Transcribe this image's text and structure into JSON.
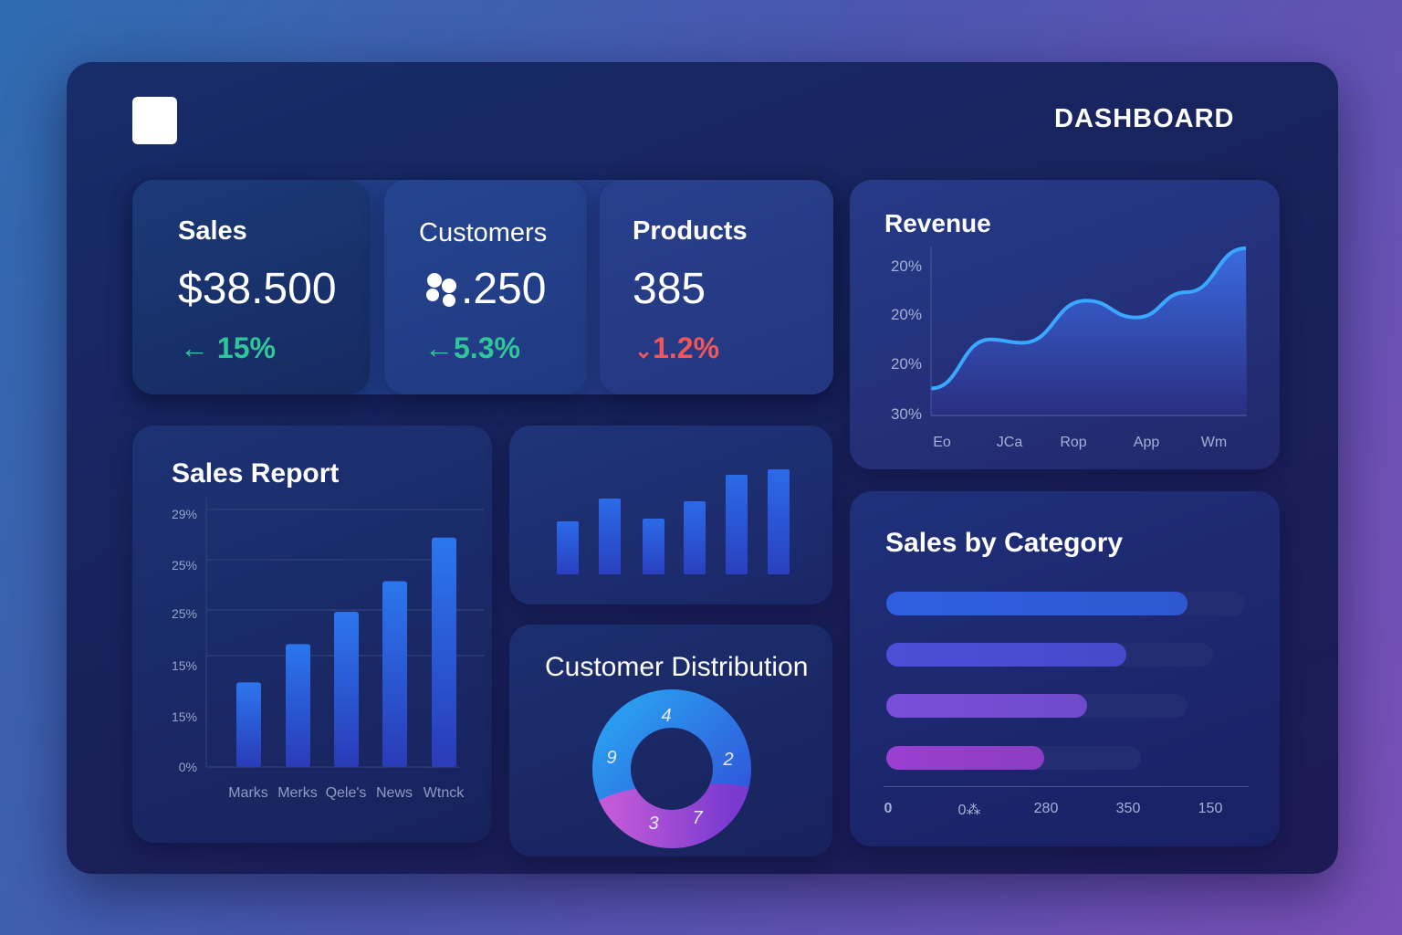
{
  "header": {
    "title": "DASHBOARD"
  },
  "stats": [
    {
      "label": "Sales",
      "value": "$38.500",
      "delta": "15%",
      "direction": "up",
      "color": "#2fc79a",
      "icon": "arrow-left-icon"
    },
    {
      "label": "Customers",
      "value": ".250",
      "delta": "5.3%",
      "direction": "up",
      "color": "#2fc79a",
      "icon": "arrow-left-icon"
    },
    {
      "label": "Products",
      "value": "385",
      "delta": "1.2%",
      "direction": "down",
      "color": "#f0565a",
      "icon": "chevron-down-icon"
    }
  ],
  "revenue": {
    "title": "Revenue",
    "y_ticks": [
      "20%",
      "20%",
      "20%",
      "30%"
    ],
    "x_ticks": [
      "Eo",
      "JCa",
      "Rop",
      "App",
      "Wm"
    ],
    "values": [
      16,
      45,
      43,
      68,
      58,
      73,
      99
    ],
    "line_color": "#3aa8ff"
  },
  "sales_report": {
    "title": "Sales Report",
    "y_ticks": [
      "29%",
      "25%",
      "25%",
      "15%",
      "15%",
      "0%"
    ],
    "categories": [
      "Marks",
      "Merks",
      "Qele's",
      "News",
      "Wtnck"
    ],
    "values": [
      9.7,
      14.1,
      17.8,
      21.3,
      26.3
    ]
  },
  "mini_bars": {
    "values": [
      58,
      83,
      61,
      80,
      109,
      115
    ]
  },
  "customer_distribution": {
    "title": "Customer Distribution",
    "labels": [
      "4",
      "9",
      "2",
      "3",
      "7"
    ]
  },
  "sales_by_category": {
    "title": "Sales by Category",
    "bars": [
      {
        "fill": 0.84,
        "track": 1.0,
        "color": "#2f5fe0"
      },
      {
        "fill": 0.67,
        "track": 0.91,
        "color": "#4b4fd8"
      },
      {
        "fill": 0.56,
        "track": 0.84,
        "color": "#7a4fd8"
      },
      {
        "fill": 0.44,
        "track": 0.71,
        "color": "#9b3fd0"
      }
    ],
    "x_ticks": [
      "0",
      "0⁂",
      "280",
      "350",
      "150"
    ]
  }
}
